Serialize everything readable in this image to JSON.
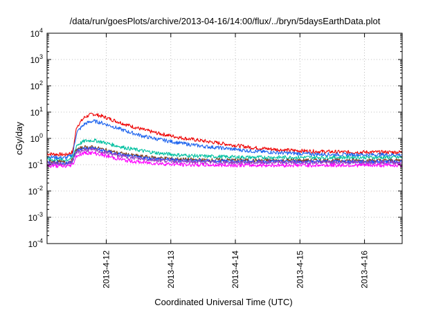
{
  "chart_data": {
    "type": "line",
    "title": "/data/run/goesPlots/archive/2013-04-16/14:00/flux/../bryn/5daysEarthData.plot",
    "xlabel": "Coordinated Universal Time (UTC)",
    "ylabel": "cGy/day",
    "yscale": "log",
    "ylim": [
      0.0001,
      10000
    ],
    "y_ticks": [
      {
        "base": "10",
        "exp": "4",
        "value": 10000
      },
      {
        "base": "10",
        "exp": "3",
        "value": 1000
      },
      {
        "base": "10",
        "exp": "2",
        "value": 100
      },
      {
        "base": "10",
        "exp": "1",
        "value": 10
      },
      {
        "base": "10",
        "exp": "0",
        "value": 1
      },
      {
        "base": "10",
        "exp": "-1",
        "value": 0.1
      },
      {
        "base": "10",
        "exp": "-2",
        "value": 0.01
      },
      {
        "base": "10",
        "exp": "-3",
        "value": 0.001
      },
      {
        "base": "10",
        "exp": "-4",
        "value": 0.0001
      }
    ],
    "xlim": [
      "2013-04-11T02:00",
      "2013-04-16T14:00"
    ],
    "x_ticks": [
      {
        "label": "2013-4-12",
        "value": "2013-04-12T00:00"
      },
      {
        "label": "2013-4-13",
        "value": "2013-04-13T00:00"
      },
      {
        "label": "2013-4-14",
        "value": "2013-04-14T00:00"
      },
      {
        "label": "2013-4-15",
        "value": "2013-04-15T00:00"
      },
      {
        "label": "2013-4-16",
        "value": "2013-04-16T00:00"
      }
    ],
    "grid": true,
    "series": [
      {
        "color": "#ee0000",
        "x": [
          "2013-04-11T02:00",
          "2013-04-11T05:00",
          "2013-04-11T09:00",
          "2013-04-11T11:30",
          "2013-04-11T13:00",
          "2013-04-11T16:00",
          "2013-04-11T19:00",
          "2013-04-11T22:00",
          "2013-04-12T03:00",
          "2013-04-12T08:00",
          "2013-04-12T14:00",
          "2013-04-12T20:00",
          "2013-04-13T04:00",
          "2013-04-13T12:00",
          "2013-04-13T20:00",
          "2013-04-14T06:00",
          "2013-04-14T18:00",
          "2013-04-15T06:00",
          "2013-04-15T18:00",
          "2013-04-16T06:00",
          "2013-04-16T14:00"
        ],
        "values": [
          0.26,
          0.25,
          0.24,
          0.3,
          2.8,
          6.5,
          8.5,
          7.2,
          4.8,
          3.2,
          2.1,
          1.5,
          1.05,
          0.8,
          0.62,
          0.45,
          0.36,
          0.32,
          0.3,
          0.3,
          0.3
        ]
      },
      {
        "color": "#1e64ee",
        "x": [
          "2013-04-11T02:00",
          "2013-04-11T05:00",
          "2013-04-11T09:00",
          "2013-04-11T11:30",
          "2013-04-11T13:00",
          "2013-04-11T16:00",
          "2013-04-11T19:00",
          "2013-04-11T22:00",
          "2013-04-12T03:00",
          "2013-04-12T08:00",
          "2013-04-12T14:00",
          "2013-04-12T20:00",
          "2013-04-13T04:00",
          "2013-04-13T12:00",
          "2013-04-13T20:00",
          "2013-04-14T06:00",
          "2013-04-14T18:00",
          "2013-04-15T06:00",
          "2013-04-15T18:00",
          "2013-04-16T06:00",
          "2013-04-16T14:00"
        ],
        "values": [
          0.2,
          0.19,
          0.18,
          0.24,
          1.7,
          3.6,
          4.6,
          4.0,
          2.7,
          1.8,
          1.2,
          0.9,
          0.65,
          0.5,
          0.42,
          0.33,
          0.28,
          0.25,
          0.24,
          0.24,
          0.24
        ]
      },
      {
        "color": "#00c0a0",
        "x": [
          "2013-04-11T02:00",
          "2013-04-11T05:00",
          "2013-04-11T09:00",
          "2013-04-11T11:30",
          "2013-04-11T13:00",
          "2013-04-11T16:00",
          "2013-04-11T19:00",
          "2013-04-11T22:00",
          "2013-04-12T03:00",
          "2013-04-12T08:00",
          "2013-04-12T14:00",
          "2013-04-12T20:00",
          "2013-04-13T04:00",
          "2013-04-13T12:00",
          "2013-04-13T20:00",
          "2013-04-14T06:00",
          "2013-04-14T18:00",
          "2013-04-15T06:00",
          "2013-04-15T18:00",
          "2013-04-16T06:00",
          "2013-04-16T14:00"
        ],
        "values": [
          0.16,
          0.15,
          0.15,
          0.18,
          0.55,
          0.8,
          0.85,
          0.75,
          0.55,
          0.42,
          0.33,
          0.27,
          0.23,
          0.21,
          0.2,
          0.19,
          0.19,
          0.19,
          0.19,
          0.19,
          0.19
        ]
      },
      {
        "color": "#7a3a1a",
        "x": [
          "2013-04-11T02:00",
          "2013-04-11T05:00",
          "2013-04-11T09:00",
          "2013-04-11T11:30",
          "2013-04-11T13:00",
          "2013-04-11T16:00",
          "2013-04-11T19:00",
          "2013-04-11T22:00",
          "2013-04-12T03:00",
          "2013-04-12T08:00",
          "2013-04-12T14:00",
          "2013-04-12T20:00",
          "2013-04-13T04:00",
          "2013-04-13T12:00",
          "2013-04-13T20:00",
          "2013-04-14T06:00",
          "2013-04-14T18:00",
          "2013-04-15T06:00",
          "2013-04-15T18:00",
          "2013-04-16T06:00",
          "2013-04-16T14:00"
        ],
        "values": [
          0.13,
          0.13,
          0.12,
          0.15,
          0.38,
          0.46,
          0.46,
          0.4,
          0.3,
          0.24,
          0.2,
          0.18,
          0.16,
          0.15,
          0.15,
          0.145,
          0.145,
          0.145,
          0.145,
          0.145,
          0.145
        ]
      },
      {
        "color": "#2050ff",
        "x": [
          "2013-04-11T02:00",
          "2013-04-11T05:00",
          "2013-04-11T09:00",
          "2013-04-11T11:30",
          "2013-04-11T13:00",
          "2013-04-11T16:00",
          "2013-04-11T19:00",
          "2013-04-11T22:00",
          "2013-04-12T03:00",
          "2013-04-12T08:00",
          "2013-04-12T14:00",
          "2013-04-12T20:00",
          "2013-04-13T04:00",
          "2013-04-13T12:00",
          "2013-04-13T20:00",
          "2013-04-14T06:00",
          "2013-04-14T18:00",
          "2013-04-15T06:00",
          "2013-04-15T18:00",
          "2013-04-16T06:00",
          "2013-04-16T14:00"
        ],
        "values": [
          0.12,
          0.12,
          0.11,
          0.14,
          0.34,
          0.42,
          0.42,
          0.36,
          0.27,
          0.21,
          0.18,
          0.16,
          0.145,
          0.14,
          0.135,
          0.13,
          0.13,
          0.13,
          0.13,
          0.13,
          0.13
        ]
      },
      {
        "color": "#9a40c0",
        "x": [
          "2013-04-11T02:00",
          "2013-04-11T05:00",
          "2013-04-11T09:00",
          "2013-04-11T11:30",
          "2013-04-11T13:00",
          "2013-04-11T16:00",
          "2013-04-11T19:00",
          "2013-04-11T22:00",
          "2013-04-12T03:00",
          "2013-04-12T08:00",
          "2013-04-12T14:00",
          "2013-04-12T20:00",
          "2013-04-13T04:00",
          "2013-04-13T12:00",
          "2013-04-13T20:00",
          "2013-04-14T06:00",
          "2013-04-14T18:00",
          "2013-04-15T06:00",
          "2013-04-15T18:00",
          "2013-04-16T06:00",
          "2013-04-16T14:00"
        ],
        "values": [
          0.11,
          0.11,
          0.1,
          0.13,
          0.3,
          0.36,
          0.36,
          0.31,
          0.24,
          0.19,
          0.16,
          0.145,
          0.13,
          0.125,
          0.12,
          0.12,
          0.12,
          0.12,
          0.12,
          0.12,
          0.12
        ]
      },
      {
        "color": "#ff00ff",
        "x": [
          "2013-04-11T02:00",
          "2013-04-11T05:00",
          "2013-04-11T09:00",
          "2013-04-11T11:30",
          "2013-04-11T13:00",
          "2013-04-11T16:00",
          "2013-04-11T19:00",
          "2013-04-11T22:00",
          "2013-04-12T03:00",
          "2013-04-12T08:00",
          "2013-04-12T14:00",
          "2013-04-12T20:00",
          "2013-04-13T04:00",
          "2013-04-13T12:00",
          "2013-04-13T20:00",
          "2013-04-14T06:00",
          "2013-04-14T18:00",
          "2013-04-15T06:00",
          "2013-04-15T18:00",
          "2013-04-16T06:00",
          "2013-04-16T14:00"
        ],
        "values": [
          0.09,
          0.09,
          0.085,
          0.1,
          0.22,
          0.28,
          0.28,
          0.24,
          0.18,
          0.14,
          0.12,
          0.11,
          0.1,
          0.098,
          0.096,
          0.095,
          0.095,
          0.095,
          0.095,
          0.095,
          0.095
        ]
      }
    ]
  }
}
